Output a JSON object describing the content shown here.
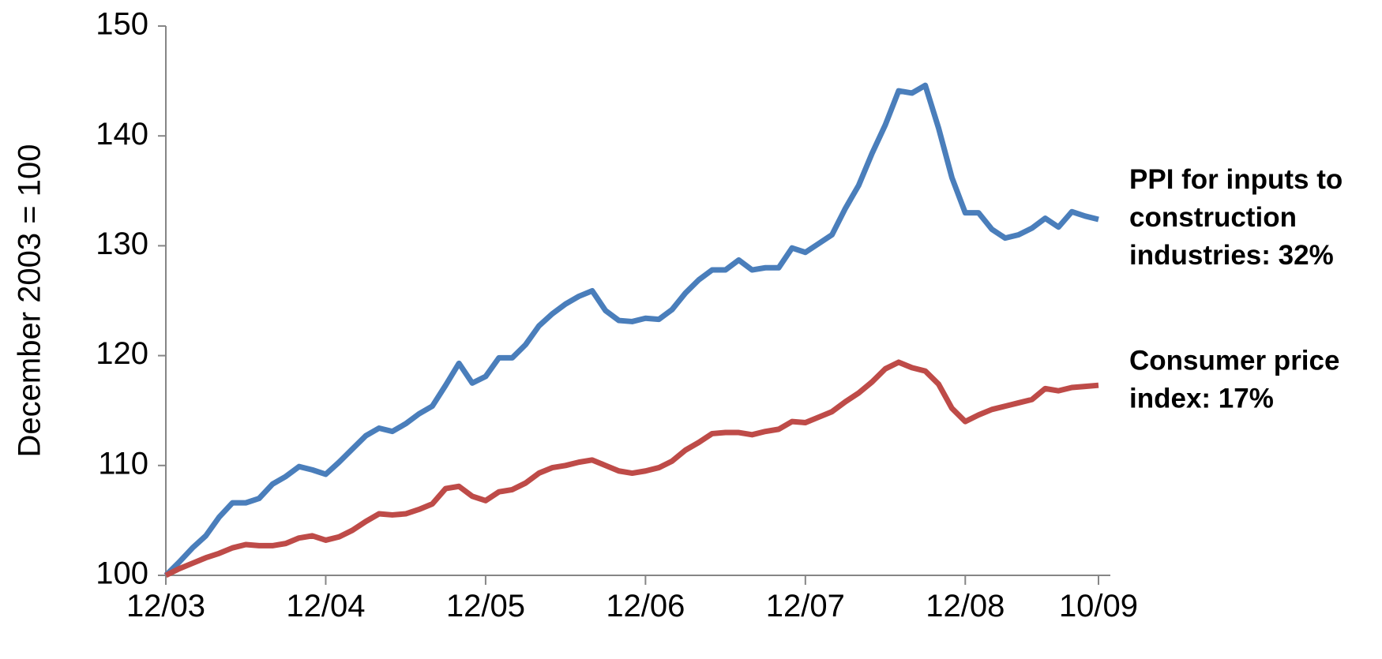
{
  "chart_data": {
    "type": "line",
    "y_axis_label": "December 2003 = 100",
    "x": [
      0,
      1,
      2,
      3,
      4,
      5,
      6,
      7,
      8,
      9,
      10,
      11,
      12,
      13,
      14,
      15,
      16,
      17,
      18,
      19,
      20,
      21,
      22,
      23,
      24,
      25,
      26,
      27,
      28,
      29,
      30,
      31,
      32,
      33,
      34,
      35,
      36,
      37,
      38,
      39,
      40,
      41,
      42,
      43,
      44,
      45,
      46,
      47,
      48,
      49,
      50,
      51,
      52,
      53,
      54,
      55,
      56,
      57,
      58,
      59,
      60,
      61,
      62,
      63,
      64,
      65,
      66,
      67,
      68,
      69,
      70
    ],
    "xlim": [
      0,
      70
    ],
    "xticks": [
      {
        "value": 0,
        "label": "12/03"
      },
      {
        "value": 12,
        "label": "12/04"
      },
      {
        "value": 24,
        "label": "12/05"
      },
      {
        "value": 36,
        "label": "12/06"
      },
      {
        "value": 48,
        "label": "12/07"
      },
      {
        "value": 60,
        "label": "12/08"
      },
      {
        "value": 70,
        "label": "10/09"
      }
    ],
    "ylim": [
      100,
      150
    ],
    "yticks": [
      100,
      110,
      120,
      130,
      140,
      150
    ],
    "series": [
      {
        "label": [
          "PPI for inputs to",
          "construction",
          "industries: 32%"
        ],
        "color": "#4a7ebb",
        "values": [
          100,
          101.2,
          102.5,
          103.6,
          105.3,
          106.6,
          106.6,
          107.0,
          108.3,
          109.0,
          109.9,
          109.6,
          109.2,
          110.3,
          111.5,
          112.7,
          113.4,
          113.1,
          113.8,
          114.7,
          115.4,
          117.3,
          119.3,
          117.5,
          118.1,
          119.8,
          119.8,
          121.0,
          122.7,
          123.8,
          124.7,
          125.4,
          125.9,
          124.1,
          123.2,
          123.1,
          123.4,
          123.3,
          124.2,
          125.7,
          126.9,
          127.8,
          127.8,
          128.7,
          127.8,
          128.0,
          128.0,
          129.8,
          129.4,
          130.2,
          131.0,
          133.4,
          135.5,
          138.4,
          141.0,
          144.1,
          143.9,
          144.6,
          140.7,
          136.2,
          133.0,
          133.0,
          131.5,
          130.7,
          131.0,
          131.6,
          132.5,
          131.7,
          133.1,
          132.7,
          132.4
        ]
      },
      {
        "label": [
          "Consumer price",
          "index: 17%"
        ],
        "color": "#be4b48",
        "values": [
          100,
          100.6,
          101.1,
          101.6,
          102.0,
          102.5,
          102.8,
          102.7,
          102.7,
          102.9,
          103.4,
          103.6,
          103.2,
          103.5,
          104.1,
          104.9,
          105.6,
          105.5,
          105.6,
          106.0,
          106.5,
          107.9,
          108.1,
          107.2,
          106.8,
          107.6,
          107.8,
          108.4,
          109.3,
          109.8,
          110.0,
          110.3,
          110.5,
          110.0,
          109.5,
          109.3,
          109.5,
          109.8,
          110.4,
          111.4,
          112.1,
          112.9,
          113.0,
          113.0,
          112.8,
          113.1,
          113.3,
          114.0,
          113.9,
          114.4,
          114.9,
          115.8,
          116.6,
          117.6,
          118.8,
          119.4,
          118.9,
          118.6,
          117.4,
          115.2,
          114.0,
          114.6,
          115.1,
          115.4,
          115.7,
          116.0,
          117.0,
          116.8,
          117.1,
          117.2,
          117.3
        ]
      }
    ]
  }
}
